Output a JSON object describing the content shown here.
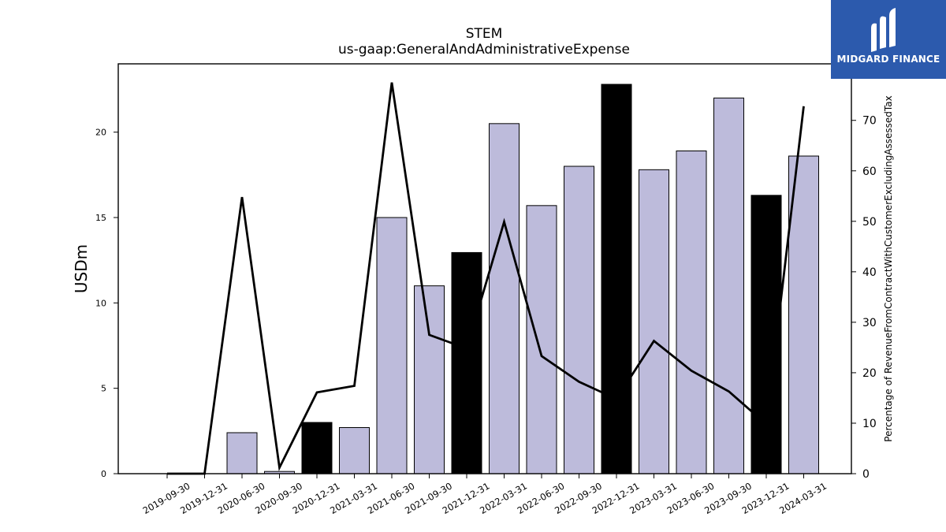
{
  "logo": {
    "text": "MIDGARD FINANCE",
    "color": "#2c5aad"
  },
  "chart_data": {
    "type": "bar",
    "title": "STEM",
    "subtitle": "us-gaap:GeneralAndAdministrativeExpense",
    "ylabel": "USDm",
    "y2label": "Percentage of RevenueFromContractWithCustomerExcludingAssessedTax",
    "ylim": [
      0,
      24
    ],
    "y2lim": [
      0,
      81.2
    ],
    "yticks": [
      0,
      5,
      10,
      15,
      20
    ],
    "y2ticks": [
      0,
      10,
      20,
      30,
      40,
      50,
      60,
      70
    ],
    "grid": false,
    "categories": [
      "2019-09-30",
      "2019-12-31",
      "2020-06-30",
      "2020-09-30",
      "2020-12-31",
      "2021-03-31",
      "2021-06-30",
      "2021-09-30",
      "2021-12-31",
      "2022-03-31",
      "2022-06-30",
      "2022-09-30",
      "2022-12-31",
      "2023-03-31",
      "2023-06-30",
      "2023-09-30",
      "2023-12-31",
      "2024-03-31"
    ],
    "series": [
      {
        "kind": "bar",
        "axis": "left",
        "values": [
          0,
          0,
          2.4,
          0.13,
          3.0,
          2.7,
          15.0,
          11.0,
          12.95,
          20.5,
          15.7,
          18.0,
          22.8,
          17.8,
          18.9,
          22.0,
          16.3,
          18.6
        ],
        "highlight": [
          false,
          false,
          false,
          false,
          true,
          false,
          false,
          false,
          true,
          false,
          false,
          false,
          true,
          false,
          false,
          false,
          true,
          false
        ],
        "color": "#bdbbdb",
        "highlight_color": "#000000"
      },
      {
        "kind": "line",
        "axis": "right",
        "values": [
          0,
          0,
          54.8,
          1.2,
          16.1,
          17.4,
          77.5,
          27.5,
          24.8,
          49.9,
          23.3,
          18.2,
          14.8,
          26.3,
          20.4,
          16.3,
          9.8,
          72.8
        ],
        "color": "#000000"
      }
    ]
  }
}
